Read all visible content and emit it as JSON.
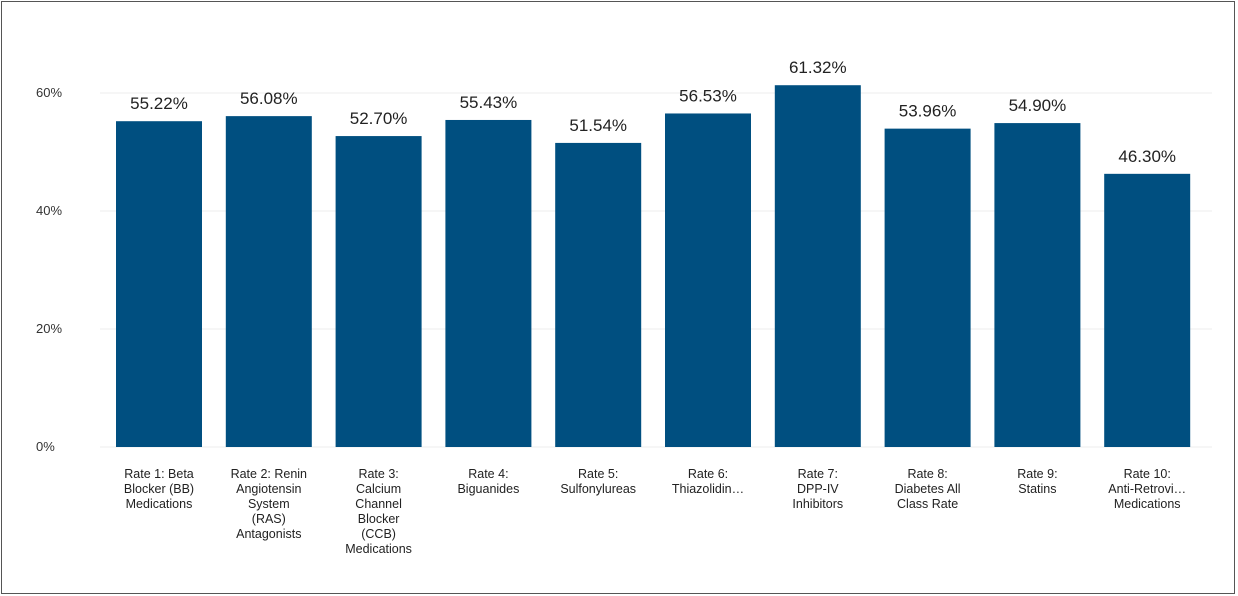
{
  "chart_data": {
    "type": "bar",
    "title": "",
    "xlabel": "",
    "ylabel": "",
    "ylim": [
      0,
      70
    ],
    "yticks": [
      "0%",
      "20%",
      "40%",
      "60%"
    ],
    "ytick_values": [
      0,
      20,
      40,
      60
    ],
    "grid": true,
    "bar_color": "#004f80",
    "gridline_color": "#eeeeee",
    "categories": [
      [
        "Rate 1: Beta",
        "Blocker (BB)",
        "Medications"
      ],
      [
        "Rate 2: Renin",
        "Angiotensin",
        "System",
        "(RAS)",
        "Antagonists"
      ],
      [
        "Rate 3:",
        "Calcium",
        "Channel",
        "Blocker",
        "(CCB)",
        "Medications"
      ],
      [
        "Rate 4:",
        "Biguanides"
      ],
      [
        "Rate 5:",
        "Sulfonylureas"
      ],
      [
        "Rate 6:",
        "Thiazolidin…"
      ],
      [
        "Rate 7:",
        "DPP-IV",
        "Inhibitors"
      ],
      [
        "Rate 8:",
        "Diabetes All",
        "Class Rate"
      ],
      [
        "Rate 9:",
        "Statins"
      ],
      [
        "Rate 10:",
        "Anti-Retrovi…",
        "Medications"
      ]
    ],
    "values": [
      55.22,
      56.08,
      52.7,
      55.43,
      51.54,
      56.53,
      61.32,
      53.96,
      54.9,
      46.3
    ],
    "value_labels": [
      "55.22%",
      "56.08%",
      "52.70%",
      "55.43%",
      "51.54%",
      "56.53%",
      "61.32%",
      "53.96%",
      "54.90%",
      "46.30%"
    ]
  }
}
